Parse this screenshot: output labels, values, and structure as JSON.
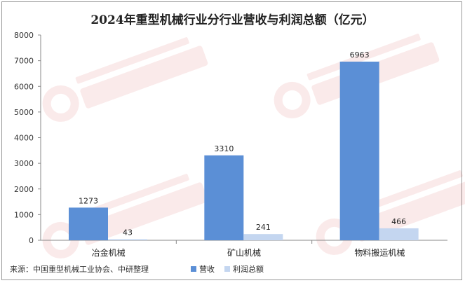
{
  "chart_data": {
    "type": "bar",
    "title": "2024年重型机械行业分行业营收与利润总额（亿元）",
    "categories": [
      "冶金机械",
      "矿山机械",
      "物料搬运机械"
    ],
    "series": [
      {
        "name": "营收",
        "values": [
          1273,
          3310,
          6963
        ],
        "color": "#5b8fd6"
      },
      {
        "name": "利润总额",
        "values": [
          43,
          241,
          466
        ],
        "color": "#c4d6f0"
      }
    ],
    "yticks": [
      "0",
      "1000",
      "2000",
      "3000",
      "4000",
      "5000",
      "6000",
      "7000",
      "8000"
    ],
    "ylim": [
      0,
      8000
    ],
    "grid": false,
    "legend_position": "bottom-center"
  },
  "source_note": "来源：中国重型机械工业协会、中研整理"
}
